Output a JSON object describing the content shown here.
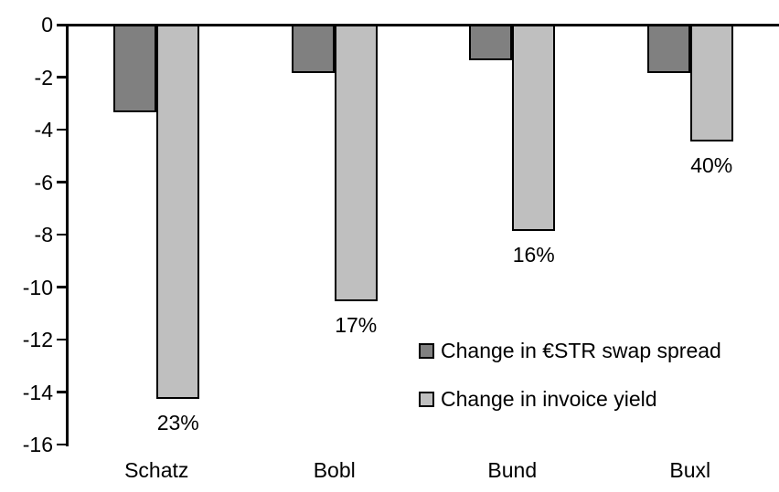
{
  "chart_data": {
    "type": "bar",
    "title": "",
    "xlabel": "",
    "ylabel": "",
    "categories": [
      "Schatz",
      "Bobl",
      "Bund",
      "Buxl"
    ],
    "series": [
      {
        "name": "Change in €STR swap spread",
        "color": "#808080",
        "values": [
          -3.3,
          -1.8,
          -1.3,
          -1.8
        ]
      },
      {
        "name": "Change in invoice yield",
        "color": "#BFBFBF",
        "values": [
          -14.2,
          -10.5,
          -7.8,
          -4.4
        ],
        "data_labels": [
          "23%",
          "17%",
          "16%",
          "40%"
        ]
      }
    ],
    "ylim": [
      -16,
      0
    ],
    "y_ticks": [
      "0",
      "-2",
      "-4",
      "-6",
      "-8",
      "-10",
      "-12",
      "-14",
      "-16"
    ],
    "grid": false,
    "legend_position": "inside-right",
    "bar_border_color": "#000000",
    "axis_color": "#000000",
    "background_color": "#FFFFFF"
  }
}
